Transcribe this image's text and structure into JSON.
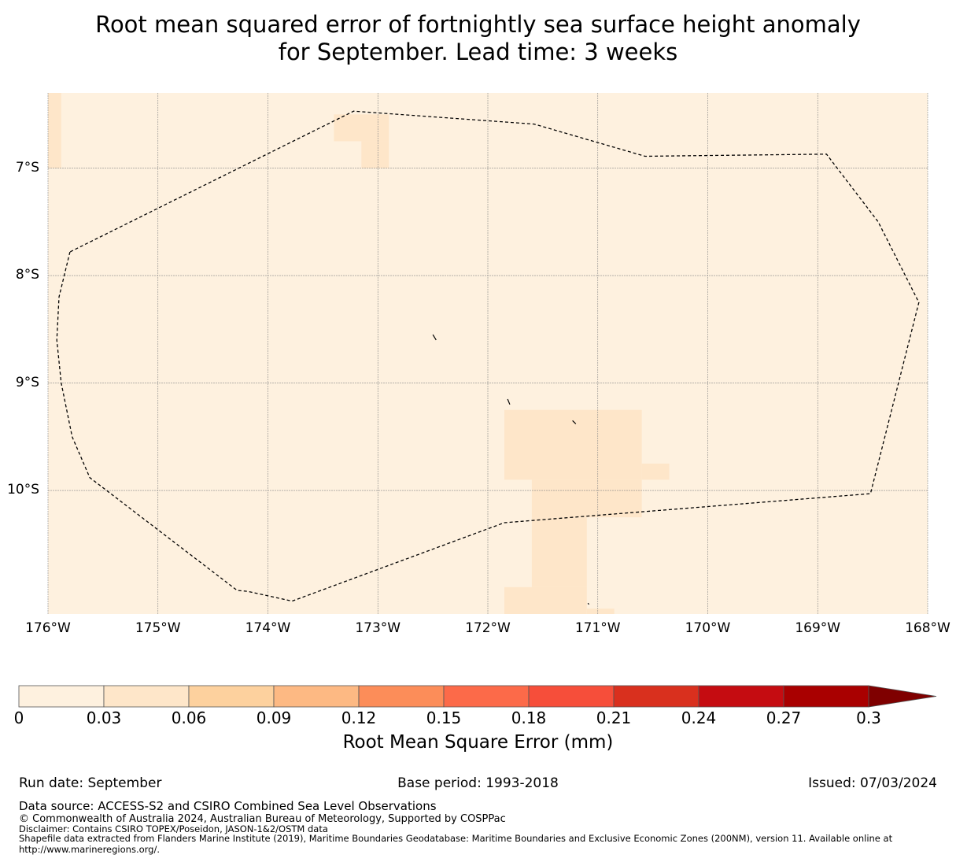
{
  "title": {
    "line1": "Root mean squared error of fortnightly sea surface height anomaly",
    "line2": "for September. Lead time: 3 weeks"
  },
  "map": {
    "lat_labels": [
      "7°S",
      "8°S",
      "9°S",
      "10°S"
    ],
    "lon_labels": [
      "176°W",
      "175°W",
      "174°W",
      "173°W",
      "172°W",
      "171°W",
      "170°W",
      "169°W",
      "168°W"
    ],
    "lat_range": [
      -11.15,
      -6.3
    ],
    "lon_range": [
      -176,
      -168
    ],
    "background_color": "#fef1df",
    "eez_boundary_style": "dashed"
  },
  "chart_data": {
    "type": "heatmap",
    "variable": "Root mean squared error of fortnightly sea surface height anomaly",
    "units": "mm",
    "month": "September",
    "lead_time": "3 weeks",
    "colorbar": {
      "label": "Root Mean Square Error (mm)",
      "ticks": [
        "0",
        "0.03",
        "0.06",
        "0.09",
        "0.12",
        "0.15",
        "0.18",
        "0.21",
        "0.24",
        "0.27",
        "0.3"
      ],
      "bounds": [
        0,
        0.03,
        0.06,
        0.09,
        0.12,
        0.15,
        0.18,
        0.21,
        0.24,
        0.27,
        0.3
      ],
      "colors": [
        "#fef1df",
        "#fee6c9",
        "#fdd19e",
        "#fdb983",
        "#fc8d59",
        "#fc6a49",
        "#f64e3a",
        "#d9301e",
        "#c50c11",
        "#a90000",
        "#7f0000"
      ],
      "extend": "max"
    },
    "cells_0_03_to_0_06": [
      {
        "lon": [
          -173.4,
          -172.9
        ],
        "lat": [
          -6.75,
          -6.5
        ]
      },
      {
        "lon": [
          -173.15,
          -172.9
        ],
        "lat": [
          -7.0,
          -6.75
        ]
      },
      {
        "lon": [
          -171.85,
          -170.6
        ],
        "lat": [
          -9.9,
          -9.25
        ]
      },
      {
        "lon": [
          -170.6,
          -170.35
        ],
        "lat": [
          -9.9,
          -9.75
        ]
      },
      {
        "lon": [
          -171.6,
          -170.6
        ],
        "lat": [
          -10.25,
          -9.9
        ]
      },
      {
        "lon": [
          -171.6,
          -171.1
        ],
        "lat": [
          -10.9,
          -10.25
        ]
      },
      {
        "lon": [
          -171.85,
          -171.1
        ],
        "lat": [
          -11.15,
          -10.9
        ]
      },
      {
        "lon": [
          -171.1,
          -170.85
        ],
        "lat": [
          -11.15,
          -11.1
        ]
      },
      {
        "lon": [
          -176.0,
          -175.88
        ],
        "lat": [
          -7.0,
          -6.3
        ]
      }
    ],
    "eez_boundary": [
      [
        -175.8,
        -7.78
      ],
      [
        -175.9,
        -8.2
      ],
      [
        -175.92,
        -8.6
      ],
      [
        -175.88,
        -9.0
      ],
      [
        -175.78,
        -9.5
      ],
      [
        -175.62,
        -9.88
      ],
      [
        -174.28,
        -10.93
      ],
      [
        -174.18,
        -10.94
      ],
      [
        -173.78,
        -11.03
      ],
      [
        -171.85,
        -10.3
      ],
      [
        -168.52,
        -10.03
      ],
      [
        -168.08,
        -8.25
      ],
      [
        -168.45,
        -7.5
      ],
      [
        -168.92,
        -6.87
      ],
      [
        -170.57,
        -6.89
      ],
      [
        -171.58,
        -6.59
      ],
      [
        -173.22,
        -6.47
      ],
      [
        -175.8,
        -7.78
      ]
    ],
    "islands": [
      {
        "lon": [
          -172.5,
          -172.47
        ],
        "lat": [
          -8.55,
          -8.6
        ]
      },
      {
        "lon": [
          -171.82,
          -171.8
        ],
        "lat": [
          -9.15,
          -9.2
        ]
      },
      {
        "lon": [
          -171.23,
          -171.2
        ],
        "lat": [
          -9.35,
          -9.38
        ]
      },
      {
        "lon": [
          -171.09,
          -171.08
        ],
        "lat": [
          -11.05,
          -11.06
        ]
      }
    ]
  },
  "footer": {
    "run_date": "Run date: September",
    "base_period": "Base period: 1993-2018",
    "issued": "Issued: 07/03/2024",
    "data_source": "Data source: ACCESS-S2 and CSIRO Combined Sea Level Observations",
    "copyright": "© Commonwealth of Australia 2024, Australian Bureau of Meteorology, Supported by COSPPac",
    "disclaimer": "Disclaimer: Contains CSIRO TOPEX/Poseidon, JASON-1&2/OSTM data",
    "shapefile_line1": "Shapefile data extracted from Flanders Marine Institute (2019), Maritime Boundaries Geodatabase: Maritime Boundaries and Exclusive Economic Zones (200NM), version 11. Available online at",
    "shapefile_line2": "http://www.marineregions.org/."
  }
}
